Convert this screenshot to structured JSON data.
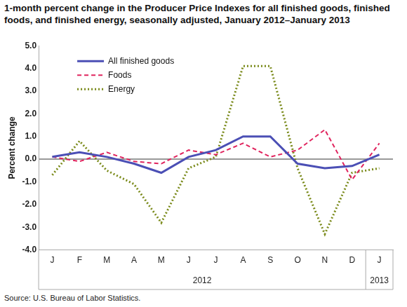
{
  "chart_data": {
    "type": "line",
    "title": "1-month percent change in the Producer Price Indexes for all finished goods, finished foods, and finished energy, seasonally adjusted, January 2012–January 2013",
    "y_label": "Percent change",
    "source": "Source: U.S. Bureau of Labor Statistics.",
    "categories": [
      "J",
      "F",
      "M",
      "A",
      "M",
      "J",
      "J",
      "A",
      "S",
      "O",
      "N",
      "D",
      "J"
    ],
    "x_groups": [
      {
        "label": "2012",
        "from": 0,
        "to": 11
      },
      {
        "label": "2013",
        "from": 12,
        "to": 12
      }
    ],
    "series": [
      {
        "name": "All finished goods",
        "color": "#4b4fb5",
        "line_style": "solid",
        "values": [
          0.1,
          0.3,
          0.1,
          -0.2,
          -0.6,
          0.1,
          0.4,
          1.0,
          1.0,
          -0.2,
          -0.4,
          -0.3,
          0.2
        ]
      },
      {
        "name": "Foods",
        "color": "#e0245e",
        "line_style": "dashed",
        "values": [
          0.1,
          -0.1,
          0.3,
          -0.1,
          -0.2,
          0.4,
          0.2,
          0.7,
          0.1,
          0.4,
          1.3,
          -0.9,
          0.7
        ]
      },
      {
        "name": "Energy",
        "color": "#7a8a1a",
        "line_style": "dotted",
        "values": [
          -0.7,
          0.8,
          -0.5,
          -1.1,
          -2.8,
          -0.4,
          0.1,
          4.1,
          4.1,
          -0.4,
          -3.3,
          -0.6,
          -0.4
        ]
      }
    ],
    "ylim": [
      -4,
      5
    ],
    "yticks": [
      {
        "value": -4,
        "label": "-4.0"
      },
      {
        "value": -3,
        "label": "-3.0"
      },
      {
        "value": -2,
        "label": "-2.0"
      },
      {
        "value": -1,
        "label": "-1.0"
      },
      {
        "value": 0,
        "label": "0.0"
      },
      {
        "value": 1,
        "label": "1.0"
      },
      {
        "value": 2,
        "label": "2.0"
      },
      {
        "value": 3,
        "label": "3.0"
      },
      {
        "value": 4,
        "label": "4.0"
      },
      {
        "value": 5,
        "label": "5.0"
      }
    ],
    "grid": false,
    "legend": "upper left"
  }
}
